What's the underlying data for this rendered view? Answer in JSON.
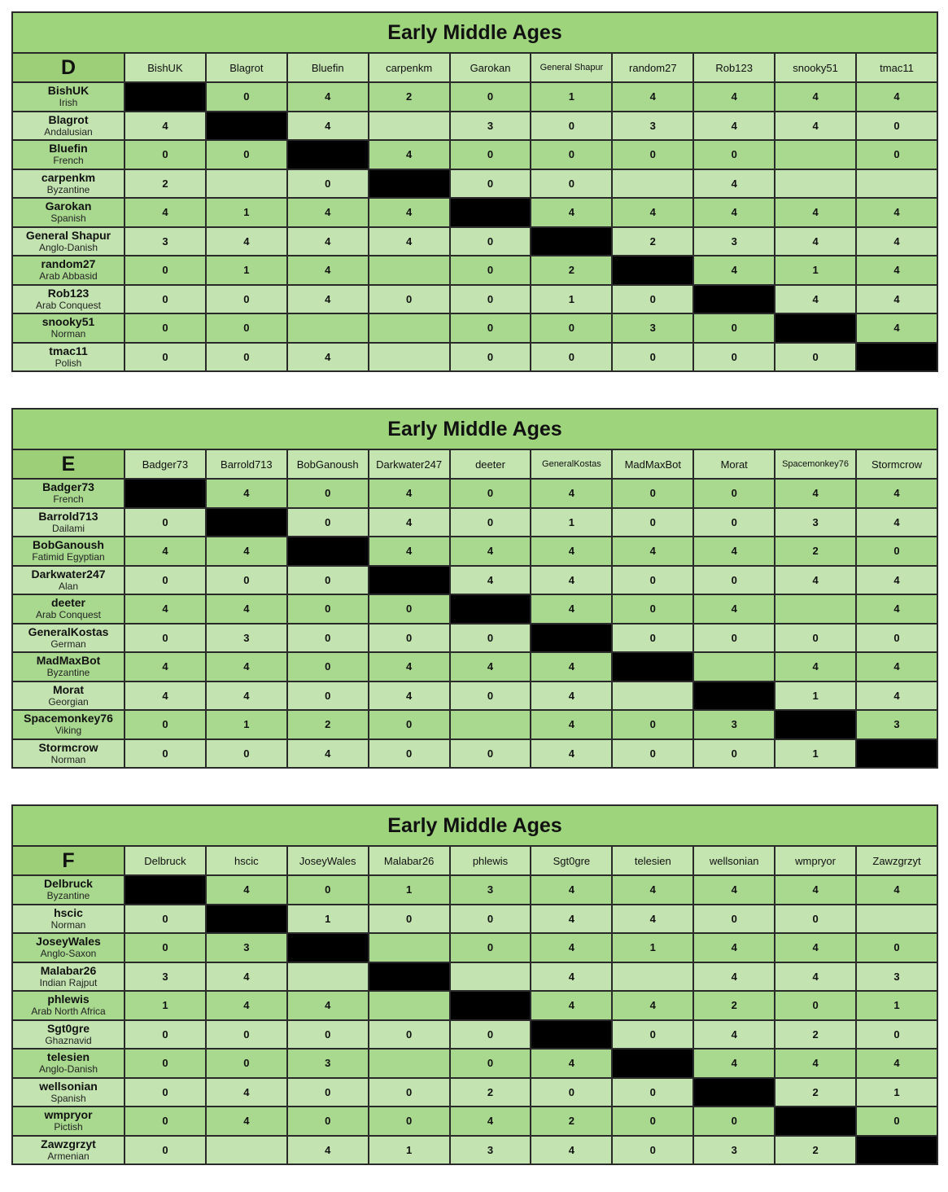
{
  "groups": [
    {
      "title": "Early Middle Ages",
      "label": "D",
      "columns": [
        "BishUK",
        "Blagrot",
        "Bluefin",
        "carpenkm",
        "Garokan",
        "General Shapur",
        "random27",
        "Rob123",
        "snooky51",
        "tmac11"
      ],
      "rows": [
        {
          "player": "BishUK",
          "faction": "Irish",
          "scores": [
            null,
            "0",
            "4",
            "2",
            "0",
            "1",
            "4",
            "4",
            "4",
            "4"
          ]
        },
        {
          "player": "Blagrot",
          "faction": "Andalusian",
          "scores": [
            "4",
            null,
            "4",
            "",
            "3",
            "0",
            "3",
            "4",
            "4",
            "0"
          ]
        },
        {
          "player": "Bluefin",
          "faction": "French",
          "scores": [
            "0",
            "0",
            null,
            "4",
            "0",
            "0",
            "0",
            "0",
            "",
            "0"
          ]
        },
        {
          "player": "carpenkm",
          "faction": "Byzantine",
          "scores": [
            "2",
            "",
            "0",
            null,
            "0",
            "0",
            "",
            "4",
            "",
            ""
          ]
        },
        {
          "player": "Garokan",
          "faction": "Spanish",
          "scores": [
            "4",
            "1",
            "4",
            "4",
            null,
            "4",
            "4",
            "4",
            "4",
            "4"
          ]
        },
        {
          "player": "General Shapur",
          "faction": "Anglo-Danish",
          "scores": [
            "3",
            "4",
            "4",
            "4",
            "0",
            null,
            "2",
            "3",
            "4",
            "4"
          ]
        },
        {
          "player": "random27",
          "faction": "Arab Abbasid",
          "scores": [
            "0",
            "1",
            "4",
            "",
            "0",
            "2",
            null,
            "4",
            "1",
            "4"
          ]
        },
        {
          "player": "Rob123",
          "faction": "Arab Conquest",
          "scores": [
            "0",
            "0",
            "4",
            "0",
            "0",
            "1",
            "0",
            null,
            "4",
            "4"
          ]
        },
        {
          "player": "snooky51",
          "faction": "Norman",
          "scores": [
            "0",
            "0",
            "",
            "",
            "0",
            "0",
            "3",
            "0",
            null,
            "4"
          ]
        },
        {
          "player": "tmac11",
          "faction": "Polish",
          "scores": [
            "0",
            "0",
            "4",
            "",
            "0",
            "0",
            "0",
            "0",
            "0",
            null
          ]
        }
      ]
    },
    {
      "title": "Early Middle Ages",
      "label": "E",
      "columns": [
        "Badger73",
        "Barrold713",
        "BobGanoush",
        "Darkwater247",
        "deeter",
        "GeneralKostas",
        "MadMaxBot",
        "Morat",
        "Spacemonkey76",
        "Stormcrow"
      ],
      "rows": [
        {
          "player": "Badger73",
          "faction": "French",
          "scores": [
            null,
            "4",
            "0",
            "4",
            "0",
            "4",
            "0",
            "0",
            "4",
            "4"
          ]
        },
        {
          "player": "Barrold713",
          "faction": "Dailami",
          "scores": [
            "0",
            null,
            "0",
            "4",
            "0",
            "1",
            "0",
            "0",
            "3",
            "4"
          ]
        },
        {
          "player": "BobGanoush",
          "faction": "Fatimid Egyptian",
          "scores": [
            "4",
            "4",
            null,
            "4",
            "4",
            "4",
            "4",
            "4",
            "2",
            "0"
          ]
        },
        {
          "player": "Darkwater247",
          "faction": "Alan",
          "scores": [
            "0",
            "0",
            "0",
            null,
            "4",
            "4",
            "0",
            "0",
            "4",
            "4"
          ]
        },
        {
          "player": "deeter",
          "faction": "Arab Conquest",
          "scores": [
            "4",
            "4",
            "0",
            "0",
            null,
            "4",
            "0",
            "4",
            "",
            "4"
          ]
        },
        {
          "player": "GeneralKostas",
          "faction": "German",
          "scores": [
            "0",
            "3",
            "0",
            "0",
            "0",
            null,
            "0",
            "0",
            "0",
            "0"
          ]
        },
        {
          "player": "MadMaxBot",
          "faction": "Byzantine",
          "scores": [
            "4",
            "4",
            "0",
            "4",
            "4",
            "4",
            null,
            "",
            "4",
            "4"
          ]
        },
        {
          "player": "Morat",
          "faction": "Georgian",
          "scores": [
            "4",
            "4",
            "0",
            "4",
            "0",
            "4",
            "",
            null,
            "1",
            "4"
          ]
        },
        {
          "player": "Spacemonkey76",
          "faction": "Viking",
          "scores": [
            "0",
            "1",
            "2",
            "0",
            "",
            "4",
            "0",
            "3",
            null,
            "3"
          ]
        },
        {
          "player": "Stormcrow",
          "faction": "Norman",
          "scores": [
            "0",
            "0",
            "4",
            "0",
            "0",
            "4",
            "0",
            "0",
            "1",
            null
          ]
        }
      ]
    },
    {
      "title": "Early Middle Ages",
      "label": "F",
      "columns": [
        "Delbruck",
        "hscic",
        "JoseyWales",
        "Malabar26",
        "phlewis",
        "Sgt0gre",
        "telesien",
        "wellsonian",
        "wmpryor",
        "Zawzgrzyt"
      ],
      "rows": [
        {
          "player": "Delbruck",
          "faction": "Byzantine",
          "scores": [
            null,
            "4",
            "0",
            "1",
            "3",
            "4",
            "4",
            "4",
            "4",
            "4"
          ]
        },
        {
          "player": "hscic",
          "faction": "Norman",
          "scores": [
            "0",
            null,
            "1",
            "0",
            "0",
            "4",
            "4",
            "0",
            "0",
            ""
          ]
        },
        {
          "player": "JoseyWales",
          "faction": "Anglo-Saxon",
          "scores": [
            "0",
            "3",
            null,
            "",
            "0",
            "4",
            "1",
            "4",
            "4",
            "0"
          ]
        },
        {
          "player": "Malabar26",
          "faction": "Indian Rajput",
          "scores": [
            "3",
            "4",
            "",
            null,
            "",
            "4",
            "",
            "4",
            "4",
            "3"
          ]
        },
        {
          "player": "phlewis",
          "faction": "Arab North Africa",
          "scores": [
            "1",
            "4",
            "4",
            "",
            null,
            "4",
            "4",
            "2",
            "0",
            "1"
          ]
        },
        {
          "player": "Sgt0gre",
          "faction": "Ghaznavid",
          "scores": [
            "0",
            "0",
            "0",
            "0",
            "0",
            null,
            "0",
            "4",
            "2",
            "0"
          ]
        },
        {
          "player": "telesien",
          "faction": "Anglo-Danish",
          "scores": [
            "0",
            "0",
            "3",
            "",
            "0",
            "4",
            null,
            "4",
            "4",
            "4"
          ]
        },
        {
          "player": "wellsonian",
          "faction": "Spanish",
          "scores": [
            "0",
            "4",
            "0",
            "0",
            "2",
            "0",
            "0",
            null,
            "2",
            "1"
          ]
        },
        {
          "player": "wmpryor",
          "faction": "Pictish",
          "scores": [
            "0",
            "4",
            "0",
            "0",
            "4",
            "2",
            "0",
            "0",
            null,
            "0"
          ]
        },
        {
          "player": "Zawzgrzyt",
          "faction": "Armenian",
          "scores": [
            "0",
            "",
            "4",
            "1",
            "3",
            "4",
            "0",
            "3",
            "2",
            null
          ]
        }
      ]
    }
  ],
  "colors": {
    "title": "#9dd47c",
    "header": "#c4e4b0",
    "row_dark": "#a9d98f",
    "row_light": "#c3e4b0",
    "diagonal": "#000000"
  }
}
